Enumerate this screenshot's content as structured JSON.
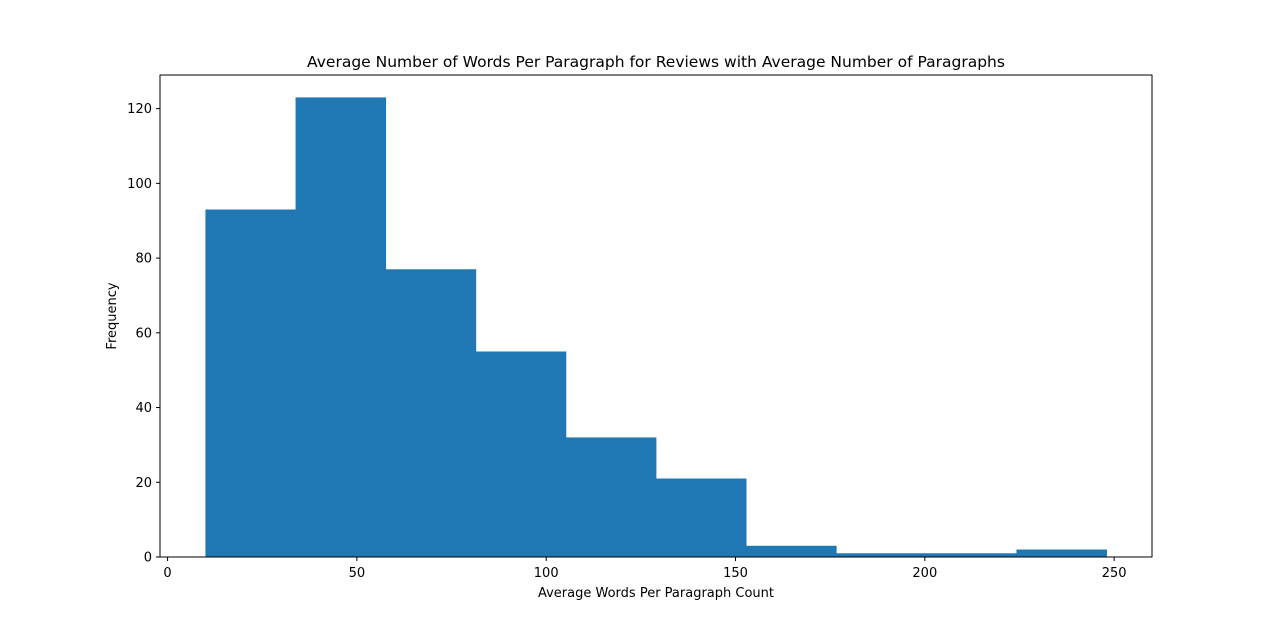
{
  "chart_data": {
    "type": "bar",
    "title": "Average Number of Words Per Paragraph for Reviews with Average Number of Paragraphs",
    "xlabel": "Average Words Per Paragraph Count",
    "ylabel": "Frequency",
    "xlim": [
      -2,
      260
    ],
    "ylim": [
      0,
      129
    ],
    "xticks": [
      0,
      50,
      100,
      150,
      200,
      250
    ],
    "yticks": [
      0,
      20,
      40,
      60,
      80,
      100,
      120
    ],
    "grid": false,
    "bar_color": "#1f77b4",
    "bins": [
      {
        "x0": 10.0,
        "x1": 33.8,
        "value": 93
      },
      {
        "x0": 33.8,
        "x1": 57.6,
        "value": 123
      },
      {
        "x0": 57.6,
        "x1": 81.4,
        "value": 77
      },
      {
        "x0": 81.4,
        "x1": 105.2,
        "value": 55
      },
      {
        "x0": 105.2,
        "x1": 129.0,
        "value": 32
      },
      {
        "x0": 129.0,
        "x1": 152.8,
        "value": 21
      },
      {
        "x0": 152.8,
        "x1": 176.6,
        "value": 3
      },
      {
        "x0": 176.6,
        "x1": 200.4,
        "value": 1
      },
      {
        "x0": 200.4,
        "x1": 224.2,
        "value": 1
      },
      {
        "x0": 224.2,
        "x1": 248.0,
        "value": 2
      }
    ]
  }
}
